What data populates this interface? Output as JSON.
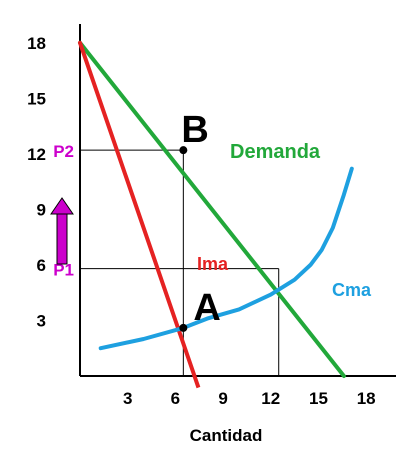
{
  "chart_data": {
    "type": "line",
    "title": "",
    "xlabel": "Cantidad",
    "ylabel": "",
    "xlim": [
      0,
      19.5
    ],
    "ylim": [
      0,
      18.8
    ],
    "x_ticks": [
      3,
      6,
      9,
      12,
      15,
      18
    ],
    "y_ticks": [
      3,
      6,
      9,
      12,
      15,
      18
    ],
    "grid": false,
    "series": [
      {
        "name": "Demanda",
        "color": "#22a83a",
        "points": [
          [
            0,
            18
          ],
          [
            16.6,
            0
          ]
        ]
      },
      {
        "name": "Ima",
        "color": "#e52222",
        "points": [
          [
            0,
            18
          ],
          [
            7.2,
            0
          ]
        ]
      },
      {
        "name": "Cma",
        "color": "#1ea0e0",
        "points": [
          [
            1.3,
            1.5
          ],
          [
            4,
            2
          ],
          [
            6.5,
            2.6
          ],
          [
            8,
            3.1
          ],
          [
            10,
            3.6
          ],
          [
            12,
            4.4
          ],
          [
            13.5,
            5.2
          ],
          [
            14.5,
            6.0
          ],
          [
            15.2,
            6.8
          ],
          [
            15.9,
            8.0
          ],
          [
            16.6,
            9.8
          ],
          [
            17.1,
            11.2
          ]
        ]
      }
    ],
    "reference_lines": [
      {
        "x": 6.5,
        "y": 12.2,
        "to_axes": true
      },
      {
        "x": 12.5,
        "y": 5.8,
        "to_axes": true
      }
    ],
    "points": [
      {
        "label": "A",
        "x": 6.5,
        "y": 2.6
      },
      {
        "label": "B",
        "x": 6.5,
        "y": 12.2
      }
    ],
    "price_labels": [
      {
        "label": "P2",
        "y": 12.2
      },
      {
        "label": "P1",
        "y": 5.8
      }
    ],
    "arrow": {
      "color": "#cc00cc",
      "direction": "up"
    },
    "colors": {
      "p_labels": "#cc00cc",
      "axes": "#000000"
    }
  }
}
